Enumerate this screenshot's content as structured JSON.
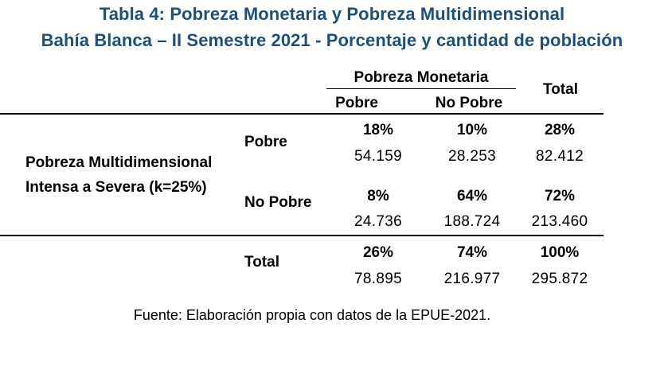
{
  "title_line1": "Tabla 4: Pobreza Monetaria y Pobreza Multidimensional",
  "title_line2": "Bahía Blanca – II Semestre 2021 - Porcentaje y cantidad de población",
  "header": {
    "group": "Pobreza Monetaria",
    "col_pobre": "Pobre",
    "col_no_pobre": "No Pobre",
    "col_total": "Total"
  },
  "row_group_label_line1": "Pobreza Multidimensional",
  "row_group_label_line2": "Intensa a Severa (k=25%)",
  "rows": [
    {
      "label": "Pobre",
      "pobre_pct": "18%",
      "pobre_n": "54.159",
      "no_pobre_pct": "10%",
      "no_pobre_n": "28.253",
      "total_pct": "28%",
      "total_n": "82.412"
    },
    {
      "label": "No Pobre",
      "pobre_pct": "8%",
      "pobre_n": "24.736",
      "no_pobre_pct": "64%",
      "no_pobre_n": "188.724",
      "total_pct": "72%",
      "total_n": "213.460"
    },
    {
      "label": "Total",
      "pobre_pct": "26%",
      "pobre_n": "78.895",
      "no_pobre_pct": "74%",
      "no_pobre_n": "216.977",
      "total_pct": "100%",
      "total_n": "295.872"
    }
  ],
  "source": "Fuente: Elaboración propia con datos de la EPUE-2021."
}
